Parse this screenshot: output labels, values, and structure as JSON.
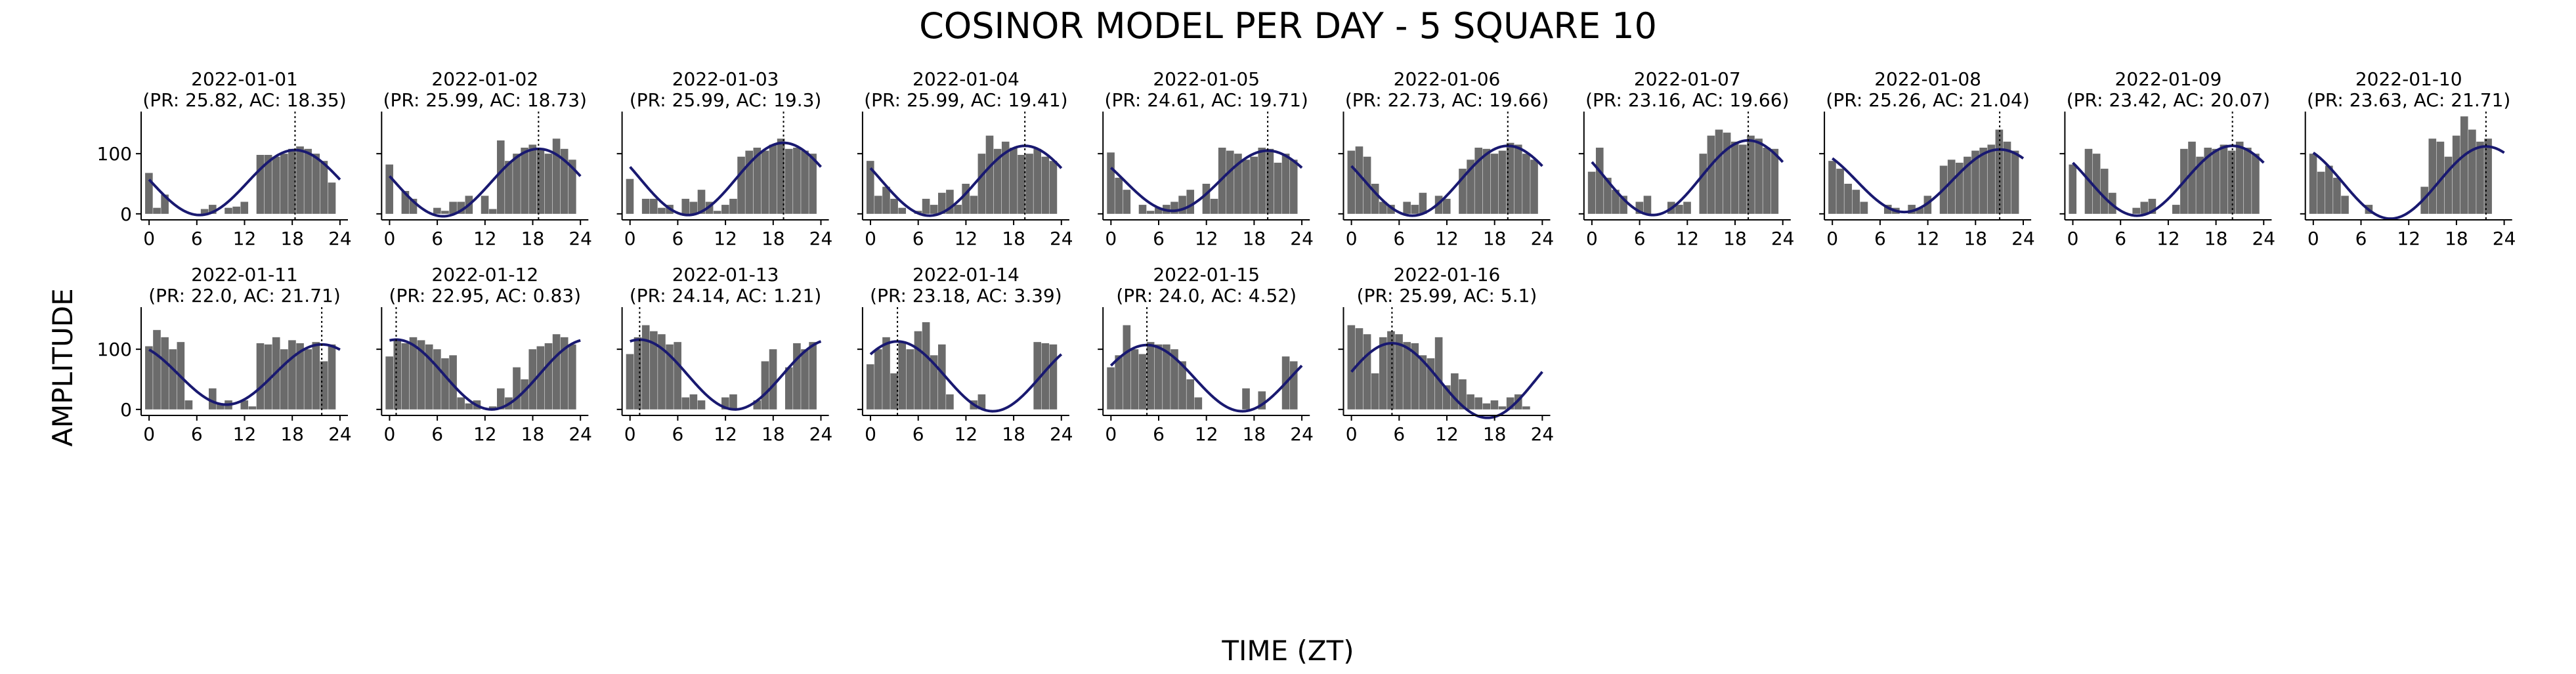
{
  "title": "COSINOR MODEL PER DAY - 5 SQUARE 10",
  "xlabel": "TIME (ZT)",
  "ylabel": "AMPLITUDE",
  "colors": {
    "bar": "#6b6b6b",
    "curve": "#191970",
    "acrophase_line": "#000000"
  },
  "chart_data": {
    "type": "bar",
    "layout": "small-multiples grid, 2 rows x 10 columns, 16 panels",
    "xlim": [
      -1,
      25
    ],
    "ylim": [
      -10,
      170
    ],
    "x_ticks": [
      0,
      6,
      12,
      18,
      24
    ],
    "y_ticks": [
      0,
      100
    ],
    "grid": false,
    "panels": [
      {
        "date": "2022-01-01",
        "label": "(PR: 25.82, AC: 18.35)",
        "mesor": 52,
        "amplitude": 54,
        "acrophase": 18.35,
        "bars": [
          68,
          10,
          32,
          0,
          0,
          0,
          0,
          8,
          15,
          0,
          10,
          12,
          20,
          0,
          98,
          98,
          95,
          100,
          108,
          112,
          108,
          100,
          88,
          52
        ]
      },
      {
        "date": "2022-01-02",
        "label": "(PR: 25.99, AC: 18.73)",
        "mesor": 52,
        "amplitude": 56,
        "acrophase": 18.73,
        "bars": [
          82,
          0,
          38,
          25,
          0,
          0,
          10,
          5,
          20,
          20,
          30,
          0,
          30,
          8,
          122,
          88,
          100,
          110,
          115,
          108,
          100,
          125,
          108,
          90
        ]
      },
      {
        "date": "2022-01-03",
        "label": "(PR: 25.99, AC: 19.3)",
        "mesor": 58,
        "amplitude": 60,
        "acrophase": 19.3,
        "bars": [
          58,
          0,
          25,
          25,
          10,
          15,
          0,
          25,
          20,
          40,
          20,
          5,
          15,
          25,
          95,
          105,
          110,
          105,
          115,
          125,
          108,
          110,
          105,
          100
        ]
      },
      {
        "date": "2022-01-04",
        "label": "(PR: 25.99, AC: 19.41)",
        "mesor": 55,
        "amplitude": 58,
        "acrophase": 19.41,
        "bars": [
          88,
          30,
          45,
          25,
          10,
          0,
          5,
          25,
          15,
          35,
          40,
          15,
          50,
          30,
          100,
          130,
          108,
          120,
          110,
          98,
          100,
          108,
          95,
          88
        ]
      },
      {
        "date": "2022-01-05",
        "label": "(PR: 24.61, AC: 19.71)",
        "mesor": 55,
        "amplitude": 50,
        "acrophase": 19.71,
        "bars": [
          102,
          60,
          40,
          0,
          15,
          5,
          10,
          15,
          20,
          30,
          40,
          0,
          50,
          25,
          110,
          105,
          100,
          90,
          95,
          110,
          108,
          85,
          100,
          90
        ]
      },
      {
        "date": "2022-01-06",
        "label": "(PR: 22.73, AC: 19.66)",
        "mesor": 55,
        "amplitude": 58,
        "acrophase": 19.66,
        "bars": [
          105,
          112,
          95,
          50,
          20,
          15,
          0,
          20,
          15,
          35,
          0,
          30,
          25,
          0,
          75,
          90,
          110,
          108,
          100,
          105,
          118,
          115,
          100,
          90
        ]
      },
      {
        "date": "2022-01-07",
        "label": "(PR: 23.16, AC: 19.66)",
        "mesor": 60,
        "amplitude": 62,
        "acrophase": 19.66,
        "bars": [
          70,
          110,
          60,
          40,
          30,
          0,
          20,
          30,
          0,
          0,
          20,
          15,
          20,
          0,
          100,
          130,
          140,
          135,
          120,
          115,
          130,
          125,
          110,
          108
        ]
      },
      {
        "date": "2022-01-08",
        "label": "(PR: 25.26, AC: 21.04)",
        "mesor": 55,
        "amplitude": 52,
        "acrophase": 21.04,
        "bars": [
          88,
          75,
          50,
          40,
          20,
          0,
          0,
          15,
          10,
          0,
          15,
          10,
          30,
          0,
          80,
          90,
          85,
          95,
          105,
          110,
          115,
          140,
          120,
          105
        ]
      },
      {
        "date": "2022-01-09",
        "label": "(PR: 23.42, AC: 20.07)",
        "mesor": 55,
        "amplitude": 58,
        "acrophase": 20.07,
        "bars": [
          82,
          0,
          108,
          100,
          75,
          35,
          0,
          0,
          10,
          20,
          25,
          0,
          0,
          15,
          108,
          120,
          95,
          110,
          108,
          115,
          105,
          120,
          110,
          100
        ]
      },
      {
        "date": "2022-01-10",
        "label": "(PR: 23.63, AC: 21.71)",
        "mesor": 52,
        "amplitude": 60,
        "acrophase": 21.71,
        "bars": [
          100,
          70,
          80,
          60,
          30,
          0,
          0,
          15,
          0,
          0,
          0,
          0,
          0,
          0,
          45,
          125,
          120,
          95,
          130,
          162,
          140,
          120,
          125,
          0
        ]
      },
      {
        "date": "2022-01-11",
        "label": "(PR: 22.0, AC: 21.71)",
        "mesor": 58,
        "amplitude": 50,
        "acrophase": 21.71,
        "bars": [
          105,
          132,
          120,
          100,
          112,
          15,
          0,
          0,
          35,
          10,
          15,
          0,
          15,
          5,
          110,
          108,
          120,
          100,
          115,
          110,
          100,
          112,
          80,
          108
        ]
      },
      {
        "date": "2022-01-12",
        "label": "(PR: 22.95, AC: 0.83)",
        "mesor": 58,
        "amplitude": 58,
        "acrophase": 0.83,
        "bars": [
          88,
          115,
          110,
          120,
          115,
          108,
          100,
          85,
          90,
          20,
          10,
          15,
          0,
          5,
          35,
          20,
          70,
          50,
          100,
          105,
          110,
          125,
          120,
          108
        ]
      },
      {
        "date": "2022-01-13",
        "label": "(PR: 24.14, AC: 1.21)",
        "mesor": 58,
        "amplitude": 58,
        "acrophase": 1.21,
        "bars": [
          92,
          120,
          140,
          130,
          125,
          108,
          112,
          20,
          25,
          15,
          0,
          0,
          20,
          25,
          0,
          0,
          15,
          80,
          100,
          0,
          70,
          110,
          100,
          112
        ]
      },
      {
        "date": "2022-01-14",
        "label": "(PR: 23.18, AC: 3.39)",
        "mesor": 55,
        "amplitude": 58,
        "acrophase": 3.39,
        "bars": [
          75,
          100,
          120,
          60,
          112,
          100,
          130,
          145,
          90,
          108,
          25,
          0,
          0,
          15,
          25,
          0,
          0,
          0,
          0,
          0,
          0,
          112,
          110,
          108
        ]
      },
      {
        "date": "2022-01-15",
        "label": "(PR: 24.0, AC: 4.52)",
        "mesor": 52,
        "amplitude": 55,
        "acrophase": 4.52,
        "bars": [
          70,
          90,
          140,
          100,
          92,
          112,
          108,
          108,
          100,
          80,
          50,
          20,
          0,
          0,
          0,
          0,
          0,
          35,
          0,
          30,
          0,
          0,
          88,
          80
        ]
      },
      {
        "date": "2022-01-16",
        "label": "(PR: 25.99, AC: 5.1)",
        "mesor": 48,
        "amplitude": 62,
        "acrophase": 5.1,
        "bars": [
          140,
          135,
          125,
          60,
          120,
          130,
          125,
          112,
          110,
          90,
          85,
          120,
          40,
          60,
          50,
          25,
          20,
          10,
          15,
          5,
          20,
          25,
          5,
          0
        ]
      }
    ]
  }
}
